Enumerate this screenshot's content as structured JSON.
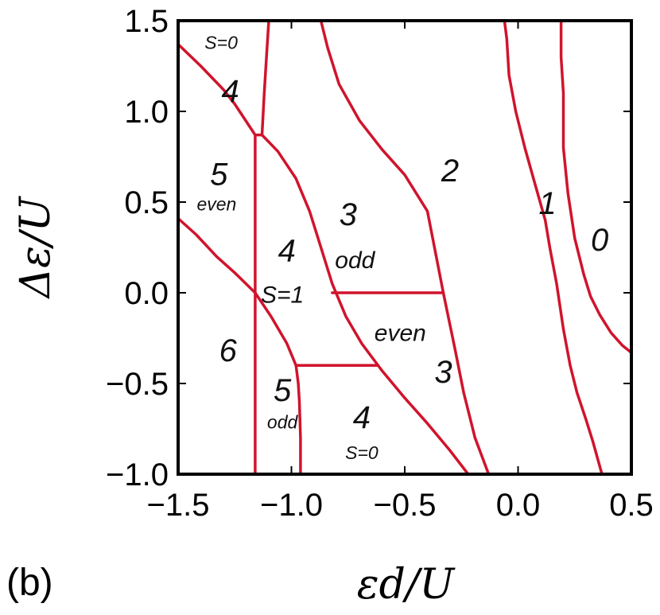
{
  "panel_label": "(b)",
  "chart_data": {
    "type": "line",
    "title": "",
    "xlabel": "εd/U",
    "ylabel": "Δε/U",
    "xlim": [
      -1.5,
      0.5
    ],
    "ylim": [
      -1.0,
      1.5
    ],
    "x_ticks": [
      -1.5,
      -1.0,
      -0.5,
      0.0,
      0.5
    ],
    "x_tick_labels": [
      "−1.5",
      "−1.0",
      "−0.5",
      "0.0",
      "0.5"
    ],
    "y_ticks": [
      -1.0,
      -0.5,
      0.0,
      0.5,
      1.0,
      1.5
    ],
    "y_tick_labels": [
      "−1.0",
      "−0.5",
      "0.0",
      "0.5",
      "1.0",
      "1.5"
    ],
    "grid": false,
    "line_color": "#d0142c",
    "boundaries": [
      {
        "x": [
          -1.5,
          -1.4,
          -1.3,
          -1.25,
          -1.16,
          -1.13
        ],
        "y": [
          1.37,
          1.25,
          1.12,
          1.04,
          0.87,
          0.87
        ]
      },
      {
        "x": [
          -1.13,
          -1.06,
          -0.98,
          -0.92,
          -0.87,
          -0.82,
          -0.76,
          -0.69,
          -0.6,
          -0.5,
          -0.4,
          -0.3,
          -0.22
        ],
        "y": [
          0.87,
          0.78,
          0.63,
          0.45,
          0.25,
          0.05,
          -0.13,
          -0.28,
          -0.43,
          -0.58,
          -0.72,
          -0.87,
          -1.0
        ]
      },
      {
        "x": [
          -1.1,
          -1.11,
          -1.12,
          -1.13
        ],
        "y": [
          1.5,
          1.3,
          1.1,
          0.87
        ]
      },
      {
        "x": [
          -1.16,
          -1.16
        ],
        "y": [
          0.87,
          -1.0
        ]
      },
      {
        "x": [
          -1.5,
          -1.42,
          -1.33,
          -1.25,
          -1.16,
          -1.09,
          -1.02,
          -0.98
        ],
        "y": [
          0.41,
          0.32,
          0.2,
          0.11,
          0.0,
          -0.13,
          -0.28,
          -0.4
        ]
      },
      {
        "x": [
          -0.98,
          -0.97,
          -0.965,
          -0.96,
          -0.96
        ],
        "y": [
          -0.4,
          -0.5,
          -0.6,
          -0.8,
          -1.0
        ]
      },
      {
        "x": [
          -0.98,
          -0.62
        ],
        "y": [
          -0.4,
          -0.4
        ]
      },
      {
        "x": [
          -0.82,
          -0.33
        ],
        "y": [
          0.0,
          0.0
        ]
      },
      {
        "x": [
          -0.87,
          -0.84,
          -0.79,
          -0.7,
          -0.6,
          -0.5,
          -0.4,
          -0.33,
          -0.28,
          -0.24,
          -0.19,
          -0.13
        ],
        "y": [
          1.5,
          1.35,
          1.15,
          0.95,
          0.79,
          0.65,
          0.45,
          0.0,
          -0.3,
          -0.55,
          -0.8,
          -1.0
        ]
      },
      {
        "x": [
          -0.06,
          -0.05,
          -0.04,
          -0.01,
          0.03,
          0.07,
          0.12,
          0.14,
          0.17,
          0.2,
          0.23,
          0.26,
          0.3,
          0.33,
          0.37
        ],
        "y": [
          1.5,
          1.4,
          1.2,
          1.0,
          0.8,
          0.62,
          0.4,
          0.25,
          0.05,
          -0.2,
          -0.4,
          -0.55,
          -0.7,
          -0.82,
          -1.0
        ]
      },
      {
        "x": [
          0.19,
          0.19,
          0.2,
          0.2,
          0.22,
          0.25,
          0.29,
          0.32,
          0.36,
          0.41,
          0.46,
          0.5
        ],
        "y": [
          1.5,
          1.3,
          1.1,
          0.8,
          0.55,
          0.3,
          0.1,
          -0.02,
          -0.12,
          -0.22,
          -0.29,
          -0.33
        ]
      }
    ],
    "annotations": [
      {
        "text": "S=0",
        "x": -1.31,
        "y": 1.37,
        "size": "small"
      },
      {
        "text": "4",
        "x": -1.27,
        "y": 1.1,
        "size": "large"
      },
      {
        "text": "5",
        "x": -1.32,
        "y": 0.64,
        "size": "large"
      },
      {
        "text": "even",
        "x": -1.33,
        "y": 0.48,
        "size": "small"
      },
      {
        "text": "2",
        "x": -0.3,
        "y": 0.66,
        "size": "large"
      },
      {
        "text": "1",
        "x": 0.13,
        "y": 0.48,
        "size": "large"
      },
      {
        "text": "0",
        "x": 0.36,
        "y": 0.28,
        "size": "large"
      },
      {
        "text": "3",
        "x": -0.75,
        "y": 0.42,
        "size": "large"
      },
      {
        "text": "odd",
        "x": -0.72,
        "y": 0.17,
        "size": "medium"
      },
      {
        "text": "4",
        "x": -1.02,
        "y": 0.22,
        "size": "large"
      },
      {
        "text": "S=1",
        "x": -1.04,
        "y": -0.02,
        "size": "medium"
      },
      {
        "text": "even",
        "x": -0.52,
        "y": -0.23,
        "size": "medium"
      },
      {
        "text": "3",
        "x": -0.33,
        "y": -0.45,
        "size": "large"
      },
      {
        "text": "6",
        "x": -1.28,
        "y": -0.33,
        "size": "large"
      },
      {
        "text": "5",
        "x": -1.04,
        "y": -0.55,
        "size": "large"
      },
      {
        "text": "odd",
        "x": -1.04,
        "y": -0.72,
        "size": "small"
      },
      {
        "text": "4",
        "x": -0.69,
        "y": -0.7,
        "size": "large"
      },
      {
        "text": "S=0",
        "x": -0.69,
        "y": -0.89,
        "size": "small"
      }
    ]
  }
}
